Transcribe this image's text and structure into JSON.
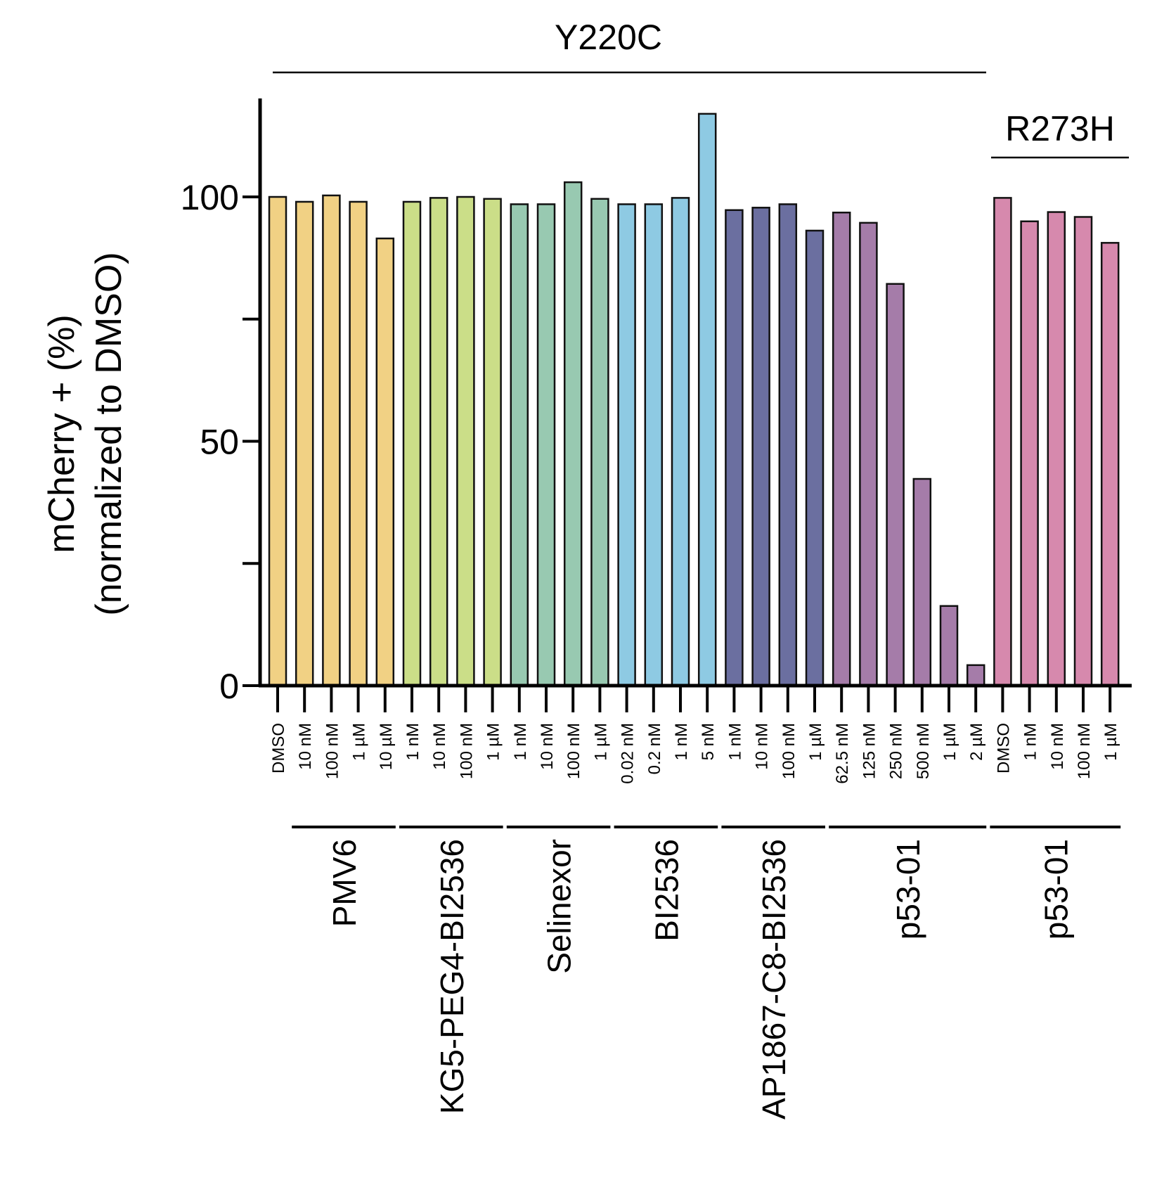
{
  "chart_data": {
    "type": "bar",
    "ylabel_line1": "mCherry + (%)",
    "ylabel_line2": "(normalized to  DMSO)",
    "ylim": [
      0,
      120
    ],
    "yticks": [
      0,
      25,
      50,
      75,
      100
    ],
    "ytick_labels": [
      "0",
      "",
      "50",
      "",
      "100"
    ],
    "top_groups": [
      {
        "label": "Y220C",
        "first": 0,
        "last": 26
      },
      {
        "label": "R273H",
        "first": 27,
        "last": 31
      }
    ],
    "groups": [
      {
        "label": "PMV6",
        "color": "#f1d184",
        "first": 1,
        "last": 4
      },
      {
        "label": "KG5-PEG4-BI2536",
        "color": "#cbde88",
        "first": 5,
        "last": 8
      },
      {
        "label": "Selinexor",
        "color": "#98c9b1",
        "first": 9,
        "last": 12
      },
      {
        "label": "BI2536",
        "color": "#8ecae3",
        "first": 13,
        "last": 16
      },
      {
        "label": "AP1867-C8-BI2536",
        "color": "#6b6fa0",
        "first": 17,
        "last": 20
      },
      {
        "label": "p53-01",
        "color": "#a57ca9",
        "first": 21,
        "last": 26
      },
      {
        "label": "p53-01",
        "color": "#d689ad",
        "first": 27,
        "last": 31
      }
    ],
    "categories": [
      "DMSO",
      "10 nM",
      "100 nM",
      "1 µM",
      "10 µM",
      "1 nM",
      "10 nM",
      "100 nM",
      "1 µM",
      "1 nM",
      "10 nM",
      "100 nM",
      "1 µM",
      "0.02 nM",
      "0.2 nM",
      "1 nM",
      "5 nM",
      "1 nM",
      "10 nM",
      "100 nM",
      "1 µM",
      "62.5 nM",
      "125 nM",
      "250 nM",
      "500 nM",
      "1 µM",
      "2 µM",
      "DMSO",
      "1 nM",
      "10 nM",
      "100 nM",
      "1 µM"
    ],
    "values": [
      100,
      99,
      100.3,
      99,
      91.5,
      99,
      99.8,
      100,
      99.6,
      98.5,
      98.5,
      103,
      99.6,
      98.5,
      98.5,
      99.8,
      117,
      97.3,
      97.8,
      98.5,
      93.1,
      96.8,
      94.7,
      82.2,
      42.3,
      16.3,
      4.2,
      99.8,
      95,
      96.9,
      95.9,
      90.6
    ],
    "colors": [
      "#f1d184",
      "#f1d184",
      "#f1d184",
      "#f1d184",
      "#f1d184",
      "#cbde88",
      "#cbde88",
      "#cbde88",
      "#cbde88",
      "#98c9b1",
      "#98c9b1",
      "#98c9b1",
      "#98c9b1",
      "#8ecae3",
      "#8ecae3",
      "#8ecae3",
      "#8ecae3",
      "#6b6fa0",
      "#6b6fa0",
      "#6b6fa0",
      "#6b6fa0",
      "#a57ca9",
      "#a57ca9",
      "#a57ca9",
      "#a57ca9",
      "#a57ca9",
      "#a57ca9",
      "#d689ad",
      "#d689ad",
      "#d689ad",
      "#d689ad",
      "#d689ad"
    ]
  }
}
